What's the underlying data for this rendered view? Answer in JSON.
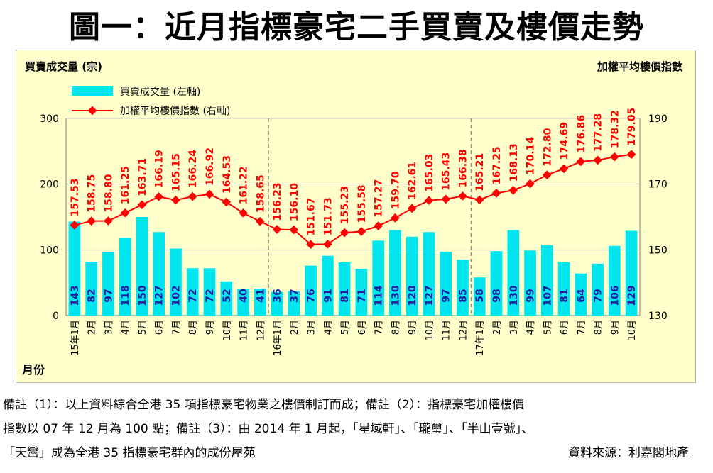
{
  "title": "圖一：近月指標豪宅二手買賣及樓價走勢",
  "colors": {
    "bar": "#00e5ee",
    "line": "#ff0000",
    "background": "#ffffcc",
    "grid": "#c8c8c8"
  },
  "chart_data": {
    "type": "bar+line",
    "left_axis_title": "買賣成交量 (宗)",
    "right_axis_title": "加權平均樓價指數",
    "x_axis_title": "月份",
    "legend": {
      "placement": "top-left",
      "bar_label": "買賣成交量 (左軸)",
      "line_label": "加權平均樓價指數 (右軸)"
    },
    "ylim_left": [
      0,
      300
    ],
    "yticks_left": [
      "0",
      "100",
      "200",
      "300"
    ],
    "ylim_right": [
      130,
      190
    ],
    "yticks_right": [
      "130",
      "150",
      "170",
      "190"
    ],
    "grid": true,
    "categories": [
      "15年1月",
      "2月",
      "3月",
      "4月",
      "5月",
      "6月",
      "7月",
      "8月",
      "9月",
      "10月",
      "11月",
      "12月",
      "16年1月",
      "2月",
      "3月",
      "4月",
      "5月",
      "6月",
      "7月",
      "8月",
      "9月",
      "10月",
      "11月",
      "12月",
      "17年1月",
      "2月",
      "3月",
      "4月",
      "5月",
      "6月",
      "7月",
      "8月",
      "9月",
      "10月"
    ],
    "series": [
      {
        "name": "買賣成交量 (左軸)",
        "kind": "bar",
        "axis": "left",
        "values": [
          143,
          82,
          97,
          118,
          150,
          127,
          102,
          72,
          72,
          52,
          40,
          41,
          36,
          37,
          76,
          91,
          81,
          71,
          114,
          130,
          120,
          127,
          97,
          85,
          58,
          98,
          130,
          99,
          107,
          81,
          64,
          79,
          106,
          129
        ]
      },
      {
        "name": "加權平均樓價指數 (右軸)",
        "kind": "line",
        "axis": "right",
        "values": [
          157.53,
          158.75,
          158.8,
          161.25,
          163.71,
          166.19,
          165.15,
          166.24,
          166.92,
          164.53,
          161.22,
          158.65,
          156.23,
          156.1,
          151.67,
          151.73,
          155.23,
          155.58,
          157.27,
          159.7,
          162.61,
          165.03,
          165.43,
          166.38,
          165.21,
          167.25,
          168.13,
          170.14,
          172.8,
          174.69,
          176.86,
          177.28,
          178.32,
          179.05
        ]
      }
    ],
    "year_dividers_after": [
      11,
      23
    ]
  },
  "notes": {
    "line1": "備註（1）：以上資料綜合全港 35 項指標豪宅物業之樓價制訂而成；備註（2）：指標豪宅加權樓價",
    "line2": "指數以 07 年 12 月為 100 點；備註（3）：由 2014 年 1 月起，「星域軒」、「瓏璽」、「半山壹號」、",
    "line3": "「天巒」成為全港 35 指標豪宅群內的成份屋苑",
    "source": "資料來源：利嘉閣地產"
  }
}
